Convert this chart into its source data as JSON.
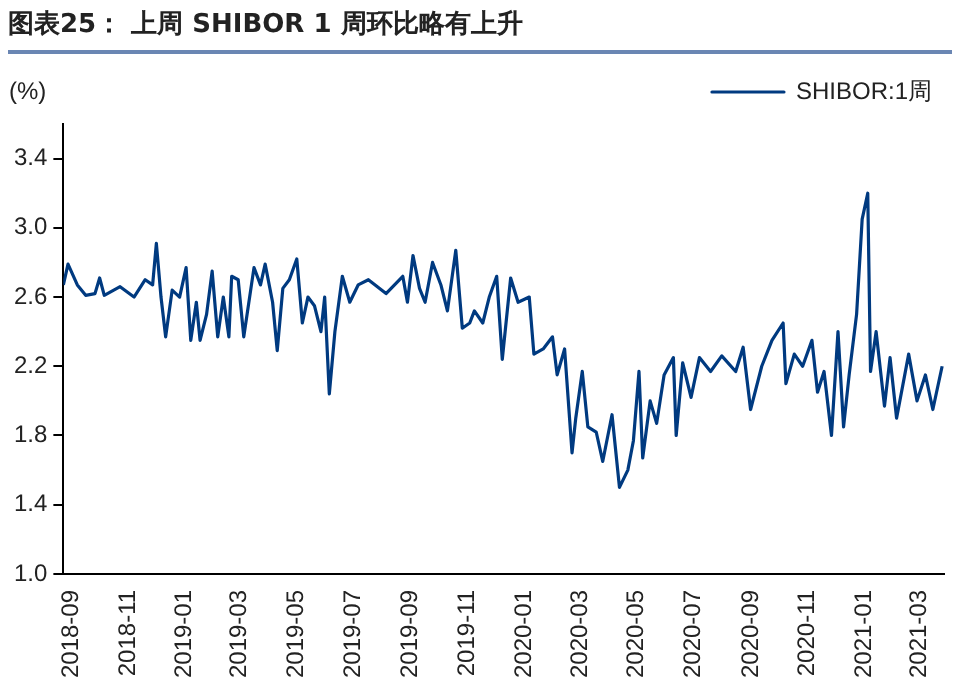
{
  "chart_data": {
    "type": "line",
    "title": "图表25： 上周 SHIBOR 1 周环比略有上升",
    "ylabel": "(%)",
    "legend": "top right",
    "grid": false,
    "marker": "none",
    "line_style": "solid",
    "xlim": [
      "2018-09-01",
      "2021-04-05"
    ],
    "xticks": [
      "2018-09",
      "2018-11",
      "2019-01",
      "2019-03",
      "2019-05",
      "2019-07",
      "2019-09",
      "2019-11",
      "2020-01",
      "2020-03",
      "2020-05",
      "2020-07",
      "2020-09",
      "2020-11",
      "2021-01",
      "2021-03"
    ],
    "ylim": [
      1.0,
      3.6
    ],
    "yticks": [
      {
        "value": 1.0,
        "label": "1.0"
      },
      {
        "value": 1.4,
        "label": "1.4"
      },
      {
        "value": 1.8,
        "label": "1.8"
      },
      {
        "value": 2.2,
        "label": "2.2"
      },
      {
        "value": 2.6,
        "label": "2.6"
      },
      {
        "value": 3.0,
        "label": "3.0"
      },
      {
        "value": 3.4,
        "label": "3.4"
      }
    ],
    "x": [
      "2018-09-01",
      "2018-09-06",
      "2018-09-16",
      "2018-09-25",
      "2018-10-05",
      "2018-10-10",
      "2018-10-15",
      "2018-11-01",
      "2018-11-16",
      "2018-11-28",
      "2018-12-06",
      "2018-12-10",
      "2018-12-15",
      "2018-12-20",
      "2018-12-27",
      "2019-01-04",
      "2019-01-11",
      "2019-01-16",
      "2019-01-22",
      "2019-01-26",
      "2019-02-02",
      "2019-02-08",
      "2019-02-14",
      "2019-02-20",
      "2019-02-26",
      "2019-03-01",
      "2019-03-08",
      "2019-03-14",
      "2019-03-25",
      "2019-04-01",
      "2019-04-06",
      "2019-04-14",
      "2019-04-19",
      "2019-04-25",
      "2019-05-02",
      "2019-05-10",
      "2019-05-16",
      "2019-05-22",
      "2019-05-29",
      "2019-06-05",
      "2019-06-09",
      "2019-06-14",
      "2019-06-20",
      "2019-06-28",
      "2019-07-06",
      "2019-07-15",
      "2019-07-26",
      "2019-08-14",
      "2019-09-01",
      "2019-09-06",
      "2019-09-12",
      "2019-09-19",
      "2019-09-25",
      "2019-10-03",
      "2019-10-12",
      "2019-10-19",
      "2019-10-28",
      "2019-11-04",
      "2019-11-12",
      "2019-11-17",
      "2019-11-26",
      "2019-12-03",
      "2019-12-11",
      "2019-12-17",
      "2019-12-26",
      "2020-01-03",
      "2020-01-15",
      "2020-01-20",
      "2020-01-30",
      "2020-02-09",
      "2020-02-14",
      "2020-02-22",
      "2020-03-01",
      "2020-03-05",
      "2020-03-12",
      "2020-03-18",
      "2020-03-27",
      "2020-04-03",
      "2020-04-13",
      "2020-04-21",
      "2020-04-30",
      "2020-05-06",
      "2020-05-12",
      "2020-05-16",
      "2020-05-24",
      "2020-05-31",
      "2020-06-08",
      "2020-06-18",
      "2020-06-21",
      "2020-06-28",
      "2020-07-07",
      "2020-07-16",
      "2020-07-28",
      "2020-08-09",
      "2020-08-24",
      "2020-09-01",
      "2020-09-09",
      "2020-09-21",
      "2020-10-02",
      "2020-10-14",
      "2020-10-17",
      "2020-10-26",
      "2020-11-04",
      "2020-11-14",
      "2020-11-20",
      "2020-11-27",
      "2020-12-05",
      "2020-12-12",
      "2020-12-18",
      "2020-12-24",
      "2021-01-01",
      "2021-01-07",
      "2021-01-13",
      "2021-01-16",
      "2021-01-22",
      "2021-01-31",
      "2021-02-06",
      "2021-02-13",
      "2021-02-26",
      "2021-03-07",
      "2021-03-16",
      "2021-03-24",
      "2021-04-03"
    ],
    "series": [
      {
        "name": "SHIBOR:1周",
        "color": "#003a80",
        "values": [
          2.67,
          2.79,
          2.67,
          2.61,
          2.62,
          2.71,
          2.61,
          2.66,
          2.6,
          2.7,
          2.67,
          2.91,
          2.6,
          2.37,
          2.64,
          2.6,
          2.77,
          2.35,
          2.57,
          2.35,
          2.5,
          2.75,
          2.37,
          2.6,
          2.37,
          2.72,
          2.7,
          2.37,
          2.77,
          2.67,
          2.79,
          2.57,
          2.29,
          2.65,
          2.7,
          2.82,
          2.45,
          2.6,
          2.55,
          2.4,
          2.6,
          2.04,
          2.4,
          2.72,
          2.57,
          2.67,
          2.7,
          2.62,
          2.72,
          2.57,
          2.84,
          2.65,
          2.57,
          2.8,
          2.67,
          2.52,
          2.87,
          2.42,
          2.45,
          2.52,
          2.45,
          2.6,
          2.72,
          2.24,
          2.71,
          2.57,
          2.6,
          2.27,
          2.3,
          2.37,
          2.15,
          2.3,
          1.7,
          1.9,
          2.17,
          1.85,
          1.82,
          1.65,
          1.92,
          1.5,
          1.6,
          1.77,
          2.17,
          1.67,
          2.0,
          1.87,
          2.15,
          2.25,
          1.8,
          2.22,
          2.02,
          2.25,
          2.17,
          2.26,
          2.17,
          2.31,
          1.95,
          2.2,
          2.35,
          2.45,
          2.1,
          2.27,
          2.2,
          2.35,
          2.05,
          2.17,
          1.8,
          2.4,
          1.85,
          2.15,
          2.5,
          3.05,
          3.2,
          2.17,
          2.4,
          1.97,
          2.25,
          1.9,
          2.27,
          2.0,
          2.15,
          1.95,
          2.2
        ]
      }
    ]
  }
}
